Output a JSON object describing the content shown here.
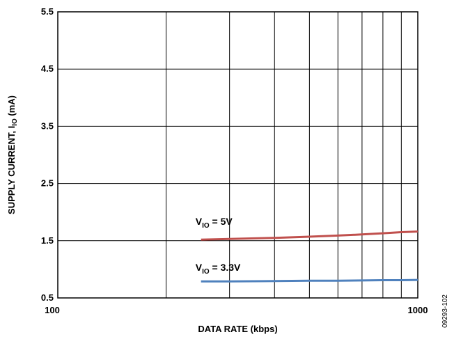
{
  "chart_data": {
    "type": "line",
    "title": "",
    "xlabel": "DATA RATE (kbps)",
    "ylabel": {
      "main": "SUPPLY CURRENT, I",
      "sub": "IO",
      "unit": " (mA)"
    },
    "xscale": "log",
    "xlim": [
      100,
      1000
    ],
    "ylim": [
      0.5,
      5.5
    ],
    "x_tick_labels": [
      "100",
      "1000"
    ],
    "x_grid_values": [
      200,
      300,
      400,
      500,
      600,
      700,
      800,
      900
    ],
    "y_ticks": [
      0.5,
      1.5,
      2.5,
      3.5,
      4.5,
      5.5
    ],
    "y_tick_labels": [
      "0.5",
      "1.5",
      "2.5",
      "3.5",
      "4.5",
      "5.5"
    ],
    "grid": true,
    "series": [
      {
        "label": {
          "main": "V",
          "sub": "IO",
          "rest": " = 5V"
        },
        "color": "#c0504d",
        "x": [
          250,
          300,
          400,
          500,
          600,
          700,
          800,
          900,
          1000
        ],
        "y": [
          1.52,
          1.53,
          1.55,
          1.57,
          1.59,
          1.61,
          1.63,
          1.65,
          1.66
        ]
      },
      {
        "label": {
          "main": "V",
          "sub": "IO",
          "rest": " = 3.3V"
        },
        "color": "#4f81bd",
        "x": [
          250,
          300,
          400,
          500,
          600,
          700,
          800,
          900,
          1000
        ],
        "y": [
          0.79,
          0.79,
          0.795,
          0.8,
          0.8,
          0.805,
          0.81,
          0.81,
          0.815
        ]
      }
    ],
    "figure_id": "09293-102"
  }
}
